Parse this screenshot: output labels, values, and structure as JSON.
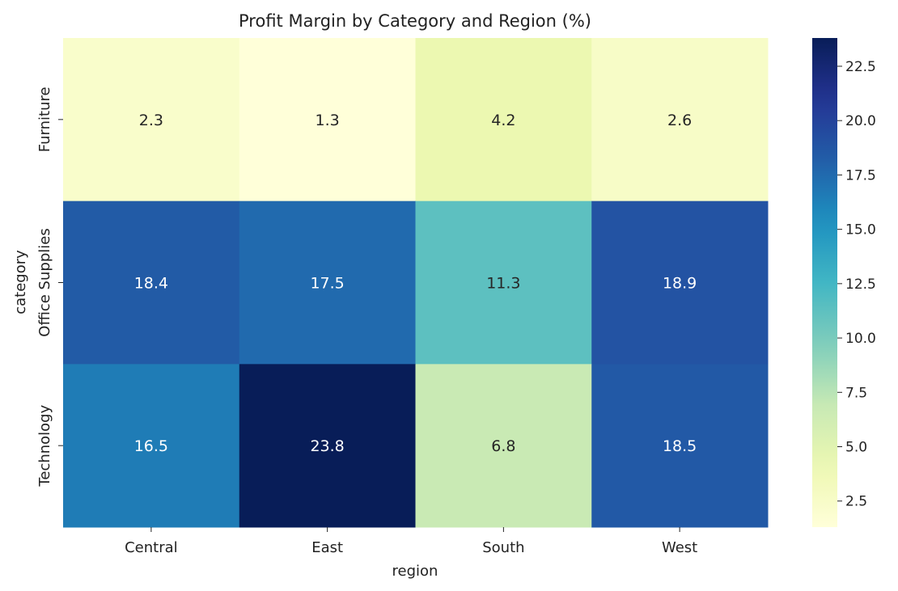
{
  "chart_data": {
    "type": "heatmap",
    "title": "Profit Margin by Category and Region (%)",
    "xlabel": "region",
    "ylabel": "category",
    "x_categories": [
      "Central",
      "East",
      "South",
      "West"
    ],
    "y_categories": [
      "Furniture",
      "Office Supplies",
      "Technology"
    ],
    "values": [
      [
        2.3,
        1.3,
        4.2,
        2.6
      ],
      [
        18.4,
        17.5,
        11.3,
        18.9
      ],
      [
        16.5,
        23.8,
        6.8,
        18.5
      ]
    ],
    "value_labels": [
      [
        "2.3",
        "1.3",
        "4.2",
        "2.6"
      ],
      [
        "18.4",
        "17.5",
        "11.3",
        "18.9"
      ],
      [
        "16.5",
        "23.8",
        "6.8",
        "18.5"
      ]
    ],
    "colormap": "YlGnBu",
    "colorbar": {
      "vmin": 1.3,
      "vmax": 23.8,
      "ticks": [
        2.5,
        5.0,
        7.5,
        10.0,
        12.5,
        15.0,
        17.5,
        20.0,
        22.5
      ],
      "tick_labels": [
        "2.5",
        "5.0",
        "7.5",
        "10.0",
        "12.5",
        "15.0",
        "17.5",
        "20.0",
        "22.5"
      ]
    },
    "colors": {
      "text_dark": "#262626",
      "text_light": "#ffffff",
      "axis": "#222222"
    }
  }
}
